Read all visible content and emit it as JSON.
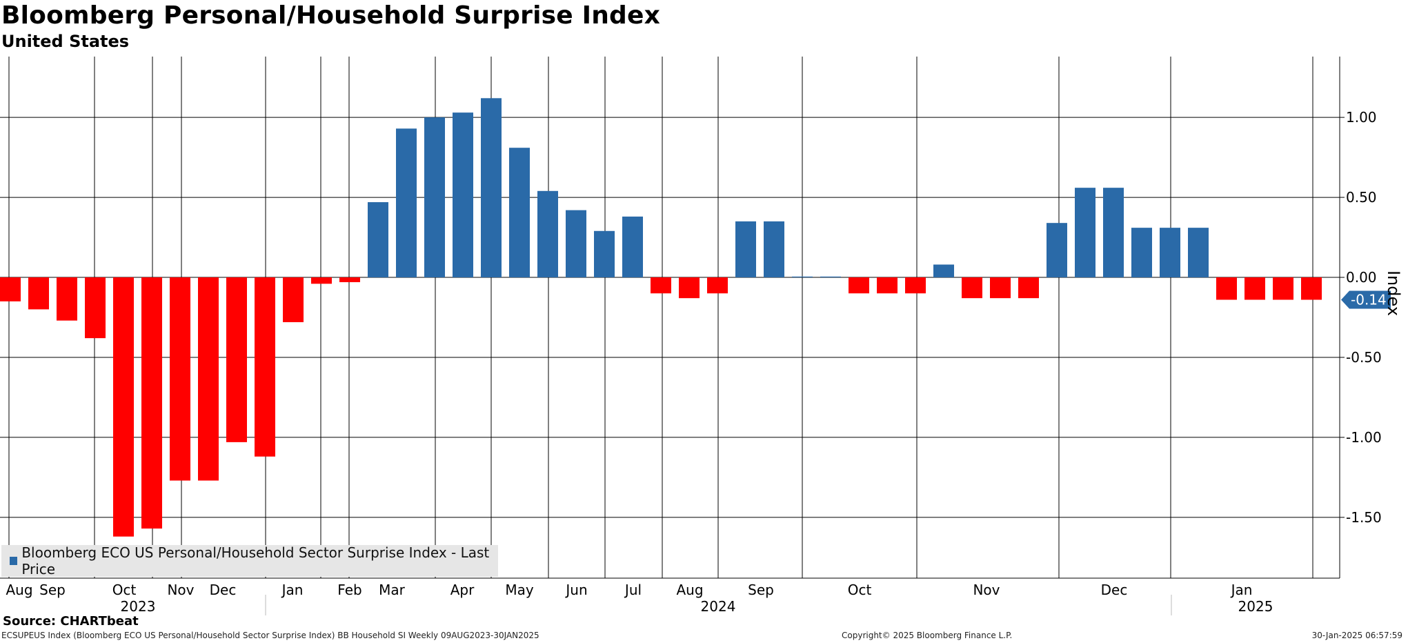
{
  "title": "Bloomberg Personal/Household Surprise Index",
  "subtitle": "United States",
  "legend_label": "Bloomberg ECO US Personal/Household Sector Surprise Index - Last Price",
  "source": "Source: CHARTbeat",
  "footer": {
    "left": "ECSUPEUS Index (Bloomberg ECO US Personal/Household Sector Surprise Index) BB Household SI  Weekly 09AUG2023-30JAN2025",
    "middle": "Copyright© 2025 Bloomberg Finance L.P.",
    "right": "30-Jan-2025 06:57:59"
  },
  "colors": {
    "positive": "#2a6aa8",
    "negative": "#ff0000",
    "badge": "#2a6aa8"
  },
  "chart_data": {
    "type": "bar",
    "title": "Bloomberg Personal/Household Surprise Index",
    "subtitle": "United States",
    "ylabel": "Index",
    "ylim": [
      -1.88,
      1.38
    ],
    "yticks": [
      1.0,
      0.5,
      0.0,
      -0.5,
      -1.0,
      -1.5
    ],
    "ytick_labels": [
      "1.00",
      "0.50",
      "0.00",
      "-0.50",
      "-1.00",
      "-1.50"
    ],
    "last_value_label": "-0.14",
    "month_labels": [
      "Aug",
      "Sep",
      "Oct",
      "Nov",
      "Dec",
      "Jan",
      "Feb",
      "Mar",
      "Apr",
      "May",
      "Jun",
      "Jul",
      "Aug",
      "Sep",
      "Oct",
      "Nov",
      "Dec",
      "Jan"
    ],
    "year_labels": [
      "2023",
      "2024",
      "2025"
    ],
    "series": [
      {
        "name": "Bloomberg ECO US Personal/Household Sector Surprise Index - Last Price",
        "values": [
          -0.15,
          -0.2,
          -0.27,
          -0.38,
          -1.62,
          -1.57,
          -1.27,
          -1.27,
          -1.03,
          -1.12,
          -0.28,
          -0.04,
          -0.03,
          0.47,
          0.93,
          1.0,
          1.03,
          1.12,
          0.81,
          0.54,
          0.42,
          0.29,
          0.38,
          -0.1,
          -0.13,
          -0.1,
          0.35,
          0.35,
          0.005,
          0.005,
          -0.1,
          -0.1,
          -0.1,
          0.08,
          -0.13,
          -0.13,
          -0.13,
          0.34,
          0.56,
          0.56,
          0.31,
          0.31,
          0.31,
          -0.14,
          -0.14,
          -0.14,
          -0.14
        ]
      }
    ]
  }
}
